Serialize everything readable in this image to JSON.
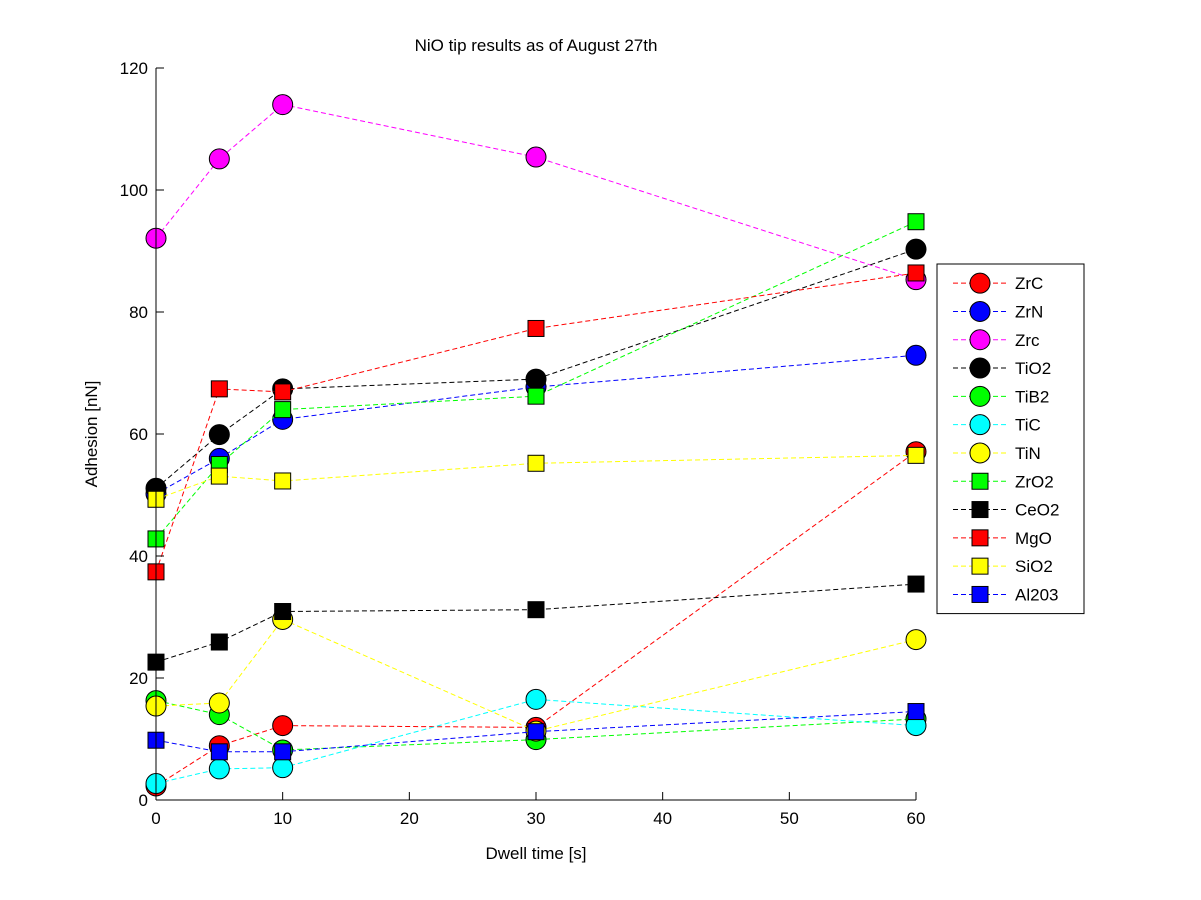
{
  "chart_data": {
    "type": "line",
    "title": "NiO tip results as of August 27th",
    "xlabel": "Dwell time [s]",
    "ylabel": "Adhesion [nN]",
    "xlim": [
      0,
      60
    ],
    "ylim": [
      0,
      120
    ],
    "xticks": [
      0,
      10,
      20,
      30,
      40,
      50,
      60
    ],
    "yticks": [
      0,
      20,
      40,
      60,
      80,
      100,
      120
    ],
    "grid": false,
    "legend_position": "right",
    "x": [
      0,
      5,
      10,
      30,
      60
    ],
    "series": [
      {
        "name": "ZrC",
        "marker": "circle",
        "color": "#ff0000",
        "values": [
          2.3,
          8.9,
          12.2,
          11.9,
          57.1
        ]
      },
      {
        "name": "ZrN",
        "marker": "circle",
        "color": "#0000ff",
        "values": [
          50.2,
          56.0,
          62.4,
          67.7,
          72.9
        ]
      },
      {
        "name": "Zrc",
        "marker": "circle",
        "color": "#ff00ff",
        "values": [
          92.1,
          105.1,
          114.0,
          105.4,
          85.3
        ]
      },
      {
        "name": "TiO2",
        "marker": "circle",
        "color": "#000000",
        "values": [
          51.1,
          59.9,
          67.4,
          69.0,
          90.3
        ]
      },
      {
        "name": "TiB2",
        "marker": "circle",
        "color": "#00ff00",
        "values": [
          16.3,
          14.0,
          8.2,
          9.9,
          13.3
        ]
      },
      {
        "name": "TiC",
        "marker": "circle",
        "color": "#00ffff",
        "values": [
          2.7,
          5.1,
          5.3,
          16.5,
          12.2
        ]
      },
      {
        "name": "TiN",
        "marker": "circle",
        "color": "#ffff00",
        "values": [
          15.4,
          15.9,
          29.6,
          11.3,
          26.3
        ]
      },
      {
        "name": "ZrO2",
        "marker": "square",
        "color": "#00ff00",
        "values": [
          42.8,
          55.0,
          64.0,
          66.2,
          94.8
        ]
      },
      {
        "name": "CeO2",
        "marker": "square",
        "color": "#000000",
        "values": [
          22.6,
          25.9,
          30.9,
          31.2,
          35.4
        ]
      },
      {
        "name": "MgO",
        "marker": "square",
        "color": "#ff0000",
        "values": [
          37.4,
          67.4,
          66.9,
          77.3,
          86.4
        ]
      },
      {
        "name": "SiO2",
        "marker": "square",
        "color": "#ffff00",
        "values": [
          49.3,
          53.1,
          52.3,
          55.2,
          56.5
        ]
      },
      {
        "name": "Al203",
        "marker": "square",
        "color": "#0000ff",
        "values": [
          9.8,
          7.9,
          7.9,
          11.2,
          14.5
        ]
      }
    ]
  }
}
